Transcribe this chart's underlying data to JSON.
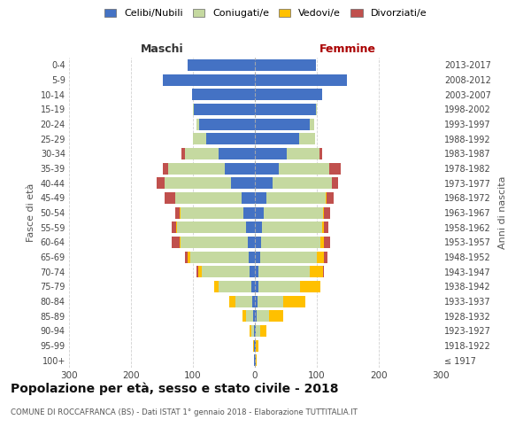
{
  "age_groups": [
    "100+",
    "95-99",
    "90-94",
    "85-89",
    "80-84",
    "75-79",
    "70-74",
    "65-69",
    "60-64",
    "55-59",
    "50-54",
    "45-49",
    "40-44",
    "35-39",
    "30-34",
    "25-29",
    "20-24",
    "15-19",
    "10-14",
    "5-9",
    "0-4"
  ],
  "birth_years": [
    "≤ 1917",
    "1918-1922",
    "1923-1927",
    "1928-1932",
    "1933-1937",
    "1938-1942",
    "1943-1947",
    "1948-1952",
    "1953-1957",
    "1958-1962",
    "1963-1967",
    "1968-1972",
    "1973-1977",
    "1978-1982",
    "1983-1987",
    "1988-1992",
    "1993-1997",
    "1998-2002",
    "2003-2007",
    "2008-2012",
    "2013-2017"
  ],
  "maschi_celibe": [
    1,
    1,
    2,
    3,
    4,
    6,
    8,
    10,
    12,
    14,
    18,
    22,
    38,
    48,
    58,
    78,
    90,
    98,
    102,
    148,
    108
  ],
  "maschi_coniugato": [
    0,
    1,
    4,
    12,
    28,
    52,
    78,
    95,
    108,
    112,
    102,
    106,
    108,
    92,
    55,
    22,
    5,
    2,
    0,
    0,
    0
  ],
  "maschi_vedovo": [
    0,
    1,
    2,
    5,
    10,
    8,
    5,
    3,
    2,
    1,
    1,
    0,
    0,
    0,
    0,
    0,
    0,
    0,
    0,
    0,
    0
  ],
  "maschi_divorziato": [
    0,
    0,
    0,
    0,
    0,
    0,
    3,
    5,
    12,
    8,
    8,
    18,
    12,
    8,
    5,
    0,
    0,
    0,
    0,
    0,
    0
  ],
  "femmine_celibe": [
    1,
    1,
    2,
    3,
    4,
    5,
    6,
    8,
    10,
    12,
    14,
    18,
    28,
    38,
    52,
    72,
    88,
    98,
    108,
    148,
    98
  ],
  "femmine_coniugato": [
    0,
    1,
    6,
    20,
    42,
    68,
    82,
    92,
    96,
    96,
    96,
    96,
    96,
    82,
    52,
    25,
    8,
    2,
    0,
    0,
    0
  ],
  "femmine_vedovo": [
    2,
    4,
    10,
    22,
    36,
    32,
    22,
    12,
    6,
    3,
    2,
    1,
    0,
    0,
    0,
    0,
    0,
    0,
    0,
    0,
    0
  ],
  "femmine_divorziata": [
    0,
    0,
    0,
    0,
    0,
    0,
    2,
    5,
    10,
    8,
    10,
    12,
    10,
    18,
    5,
    0,
    0,
    0,
    0,
    0,
    0
  ],
  "color_celibe": "#4472c4",
  "color_coniugato": "#c5d9a0",
  "color_vedovo": "#ffc000",
  "color_divorziato": "#c0504d",
  "title": "Popolazione per età, sesso e stato civile - 2018",
  "subtitle": "COMUNE DI ROCCAFRANCA (BS) - Dati ISTAT 1° gennaio 2018 - Elaborazione TUTTITALIA.IT",
  "xlabel_maschi": "Maschi",
  "xlabel_femmine": "Femmine",
  "ylabel": "Fasce di età",
  "ylabel_right": "Anni di nascita",
  "xlim": 300,
  "legend_labels": [
    "Celibi/Nubili",
    "Coniugati/e",
    "Vedovi/e",
    "Divorziati/e"
  ]
}
